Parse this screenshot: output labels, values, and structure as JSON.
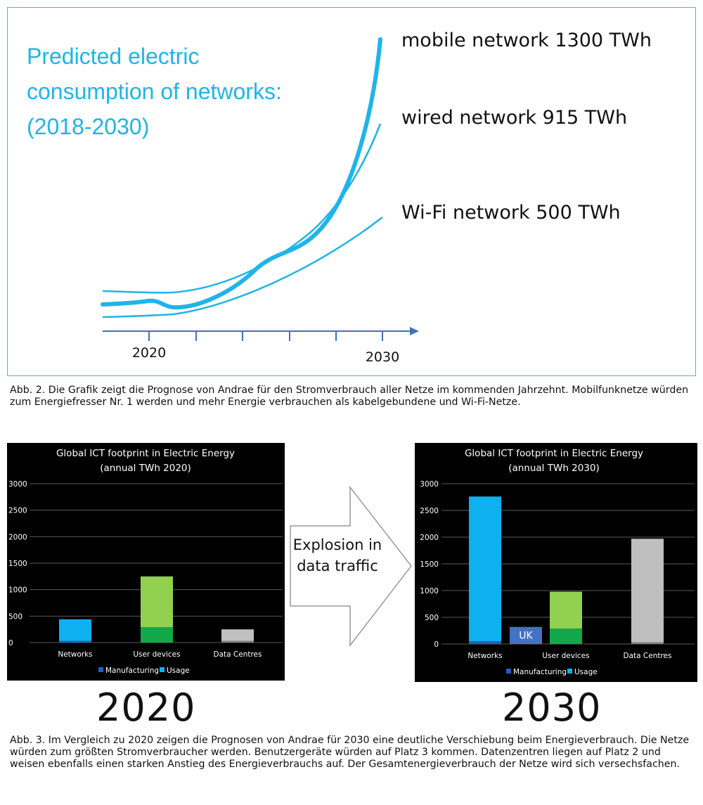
{
  "fig1": {
    "title_lines": [
      "Predicted electric",
      "consumption of networks:",
      "(2018-2030)"
    ],
    "series_labels": [
      "mobile network 1300 TWh",
      "wired network 915 TWh",
      "Wi-Fi network 500 TWh"
    ],
    "x_tick_labels": [
      "2020",
      "2030"
    ],
    "colors": {
      "accent": "#1fb4ea",
      "axis": "#3b72c4"
    }
  },
  "caption1": "Abb. 2. Die Grafik zeigt die Prognose von Andrae für den Stromverbrauch aller Netze im kommenden Jahrzehnt. Mobilfunknetze würden zum Energiefresser Nr. 1 werden und mehr Energie verbrauchen als kabelgebundene und Wi-Fi-Netze.",
  "arrow_text_lines": [
    "Explosion in",
    "data traffic"
  ],
  "big_years": [
    "2020",
    "2030"
  ],
  "caption2": "Abb. 3. Im Vergleich zu 2020 zeigen die Prognosen von Andrae für 2030 eine deutliche Verschiebung beim Energieverbrauch. Die Netze würden zum größten Stromverbraucher werden. Benutzergeräte würden auf Platz 3 kommen. Datenzentren liegen auf Platz 2 und weisen ebenfalls einen starken Anstieg des Energieverbrauchs auf. Der Gesamtenergieverbrauch der Netze wird sich versechsfachen.",
  "chart_data": [
    {
      "type": "line",
      "title": "Predicted electric consumption of networks: (2018-2030)",
      "x_tick_labels": [
        "2020",
        "2030"
      ],
      "series": [
        {
          "name": "mobile network 1300 TWh",
          "end_value": 1300
        },
        {
          "name": "wired network 915 TWh",
          "end_value": 915
        },
        {
          "name": "Wi-Fi network 500 TWh",
          "end_value": 500
        }
      ],
      "grid": false
    },
    {
      "type": "bar",
      "title_lines": [
        "Global ICT footprint in Electric Energy",
        "(annual TWh 2020)"
      ],
      "categories": [
        "Networks",
        "User devices",
        "Data Centres"
      ],
      "ylim": [
        0,
        3000
      ],
      "yticks": [
        0,
        500,
        1000,
        1500,
        2000,
        2500,
        3000
      ],
      "legend": [
        "Manufacturing",
        "Usage"
      ],
      "legend_position": "bottom",
      "grid": true,
      "bars": [
        {
          "category": "Networks",
          "segments": [
            {
              "value": 30,
              "color": "#1f5fbf"
            },
            {
              "value": 410,
              "color": "#0fb0f0"
            }
          ]
        },
        {
          "category": "User devices",
          "segments": [
            {
              "value": 290,
              "color": "#12a84a"
            },
            {
              "value": 960,
              "color": "#92d050"
            }
          ]
        },
        {
          "category": "Data Centres",
          "segments": [
            {
              "value": 30,
              "color": "#7f7f7f"
            },
            {
              "value": 220,
              "color": "#bfbfbf"
            }
          ]
        }
      ],
      "annotations": []
    },
    {
      "type": "bar",
      "title_lines": [
        "Global ICT footprint in Electric Energy",
        "(annual TWh 2030)"
      ],
      "categories": [
        "Networks",
        "User devices",
        "Data Centres"
      ],
      "ylim": [
        0,
        3000
      ],
      "yticks": [
        0,
        500,
        1000,
        1500,
        2000,
        2500,
        3000
      ],
      "legend": [
        "Manufacturing",
        "Usage"
      ],
      "legend_position": "bottom",
      "grid": true,
      "bars": [
        {
          "category": "Networks",
          "segments": [
            {
              "value": 50,
              "color": "#1f5fbf"
            },
            {
              "value": 2710,
              "color": "#0fb0f0"
            }
          ]
        },
        {
          "category": "User devices",
          "segments": [
            {
              "value": 290,
              "color": "#12a84a"
            },
            {
              "value": 690,
              "color": "#92d050"
            }
          ]
        },
        {
          "category": "Data Centres",
          "segments": [
            {
              "value": 30,
              "color": "#7f7f7f"
            },
            {
              "value": 1940,
              "color": "#bfbfbf"
            }
          ]
        }
      ],
      "annotations": [
        {
          "text": "UK",
          "value": 320,
          "after": "Networks",
          "color": "#4472c4"
        }
      ]
    }
  ]
}
